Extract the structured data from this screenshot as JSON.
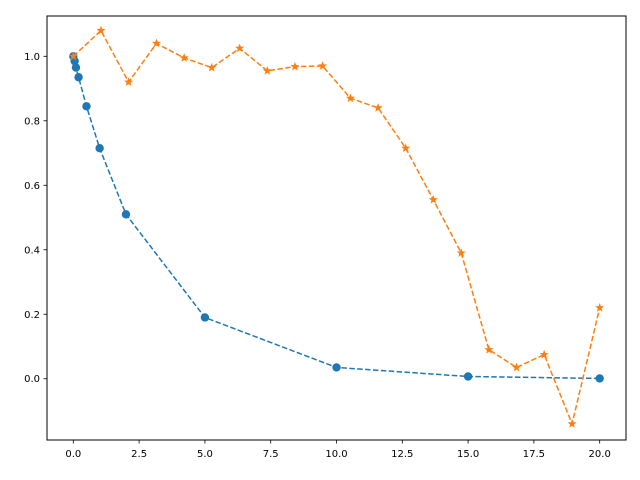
{
  "chart_data": {
    "type": "line",
    "title": "",
    "xlabel": "",
    "ylabel": "",
    "xlim": [
      -1.0,
      21.0
    ],
    "ylim": [
      -0.19,
      1.125
    ],
    "xticks": [
      0.0,
      2.5,
      5.0,
      7.5,
      10.0,
      12.5,
      15.0,
      17.5,
      20.0
    ],
    "xtick_labels": [
      "0.0",
      "2.5",
      "5.0",
      "7.5",
      "10.0",
      "12.5",
      "15.0",
      "17.5",
      "20.0"
    ],
    "yticks": [
      0.0,
      0.2,
      0.4,
      0.6,
      0.8,
      1.0
    ],
    "ytick_labels": [
      "0.0",
      "0.2",
      "0.4",
      "0.6",
      "0.8",
      "1.0"
    ],
    "grid": false,
    "legend": false,
    "series": [
      {
        "color": "#1f77b4",
        "marker": "circle",
        "linestyle": "dashed",
        "x": [
          0.0,
          0.05,
          0.1,
          0.2,
          0.5,
          1.0,
          2.0,
          5.0,
          10.0,
          15.0,
          20.0
        ],
        "y": [
          1.0,
          0.985,
          0.965,
          0.935,
          0.845,
          0.715,
          0.51,
          0.19,
          0.035,
          0.007,
          0.001
        ]
      },
      {
        "color": "#ff7f0e",
        "marker": "star",
        "linestyle": "dashed",
        "x": [
          0.0,
          1.05,
          2.1,
          3.16,
          4.21,
          5.26,
          6.32,
          7.37,
          8.42,
          9.47,
          10.53,
          11.58,
          12.63,
          13.68,
          14.74,
          15.79,
          16.84,
          17.89,
          18.95,
          20.0
        ],
        "y": [
          1.0,
          1.08,
          0.92,
          1.04,
          0.995,
          0.965,
          1.025,
          0.955,
          0.968,
          0.97,
          0.87,
          0.84,
          0.715,
          0.555,
          0.39,
          0.09,
          0.035,
          0.075,
          -0.14,
          0.22
        ]
      }
    ]
  }
}
